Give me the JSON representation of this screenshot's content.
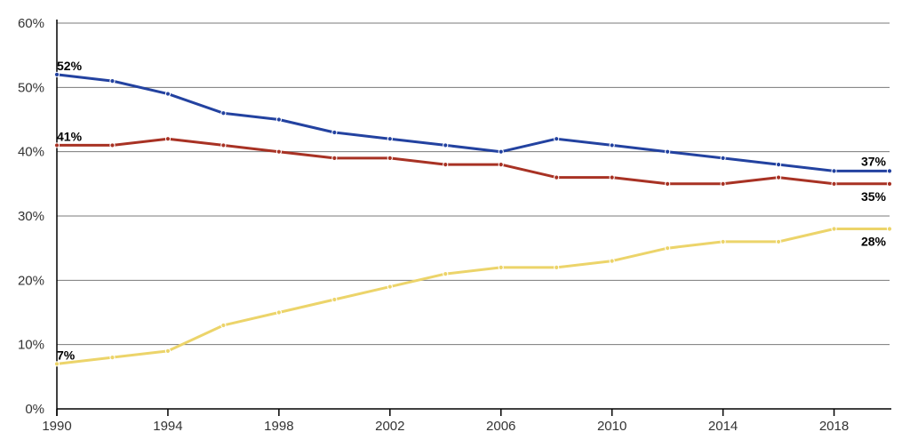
{
  "chart_data": {
    "type": "line",
    "title": "",
    "xlabel": "",
    "ylabel": "",
    "x": [
      1990,
      1992,
      1994,
      1996,
      1998,
      2000,
      2002,
      2004,
      2006,
      2008,
      2010,
      2012,
      2014,
      2016,
      2018,
      2020
    ],
    "xlim": [
      1990,
      2020
    ],
    "ylim": [
      0,
      60
    ],
    "x_ticks": [
      1990,
      1994,
      1998,
      2002,
      2006,
      2010,
      2014,
      2018
    ],
    "x_tick_labels": [
      "1990",
      "1994",
      "1998",
      "2002",
      "2006",
      "2010",
      "2014",
      "2018"
    ],
    "y_ticks": [
      0,
      10,
      20,
      30,
      40,
      50,
      60
    ],
    "y_tick_labels": [
      "0%",
      "10%",
      "20%",
      "30%",
      "40%",
      "50%",
      "60%"
    ],
    "grid": true,
    "legend": "none",
    "series": [
      {
        "color": "#2342a0",
        "values": [
          52,
          51,
          49,
          46,
          45,
          43,
          42,
          41,
          40,
          42,
          41,
          40,
          39,
          38,
          37,
          37
        ],
        "start_label": "52%",
        "end_label": "37%"
      },
      {
        "color": "#a83224",
        "values": [
          41,
          41,
          42,
          41,
          40,
          39,
          39,
          38,
          38,
          36,
          36,
          35,
          35,
          36,
          35,
          35
        ],
        "start_label": "41%",
        "end_label": "35%"
      },
      {
        "color": "#ecd46a",
        "values": [
          7,
          8,
          9,
          13,
          15,
          17,
          19,
          21,
          22,
          22,
          23,
          25,
          26,
          26,
          28,
          28
        ],
        "start_label": "7%",
        "end_label": "28%"
      }
    ]
  }
}
